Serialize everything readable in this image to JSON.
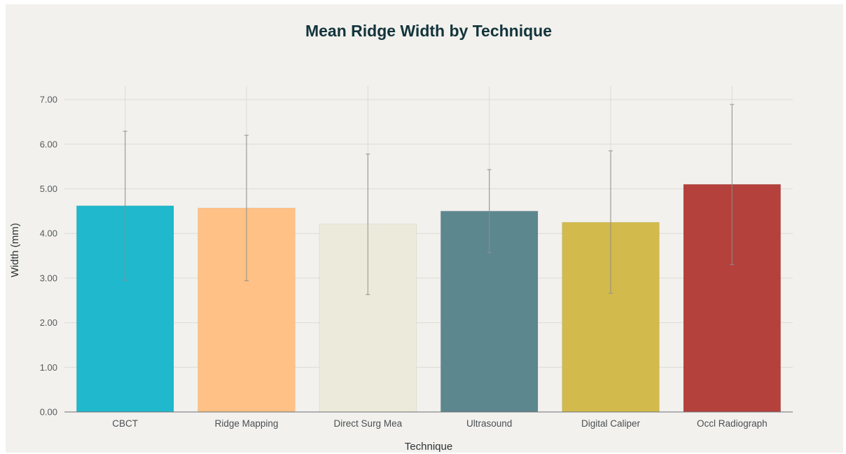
{
  "chart_data": {
    "type": "bar",
    "title": "Mean Ridge Width by Technique",
    "xlabel": "Technique",
    "ylabel": "Width (mm)",
    "categories": [
      "CBCT",
      "Ridge Mapping",
      "Direct Surg Mea",
      "Ultrasound",
      "Digital Caliper",
      "Occl Radiograph"
    ],
    "values": [
      4.62,
      4.57,
      4.21,
      4.5,
      4.25,
      5.1
    ],
    "error_low": [
      2.95,
      2.94,
      2.63,
      3.57,
      2.66,
      3.3
    ],
    "error_high": [
      6.29,
      6.2,
      5.78,
      5.43,
      5.85,
      6.89
    ],
    "colors": [
      "#1fb8cd",
      "#ffc185",
      "#eceada",
      "#5d878f",
      "#d2ba4c",
      "#b4413c"
    ],
    "ylim": [
      0,
      7.3
    ],
    "yticks": [
      0,
      1,
      2,
      3,
      4,
      5,
      6,
      7
    ],
    "ytick_labels": [
      "0.00",
      "1.00",
      "2.00",
      "3.00",
      "4.00",
      "5.00",
      "6.00",
      "7.00"
    ],
    "grid": true,
    "legend": "none"
  }
}
